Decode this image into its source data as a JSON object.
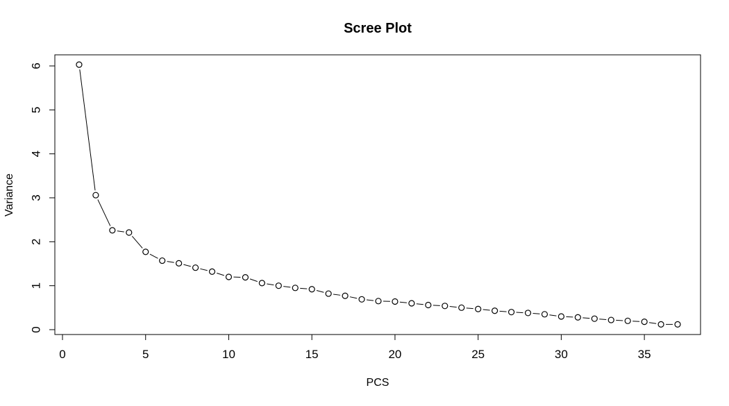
{
  "chart_data": {
    "type": "line",
    "title": "Scree Plot",
    "xlabel": "PCS",
    "ylabel": "Variance",
    "xlim": [
      0,
      37
    ],
    "ylim": [
      0,
      6
    ],
    "xticks": [
      0,
      5,
      10,
      15,
      20,
      25,
      30,
      35
    ],
    "yticks": [
      0,
      1,
      2,
      3,
      4,
      5,
      6
    ],
    "grid": false,
    "marker": "open-circle",
    "line_color": "#000000",
    "x": [
      1,
      2,
      3,
      4,
      5,
      6,
      7,
      8,
      9,
      10,
      11,
      12,
      13,
      14,
      15,
      16,
      17,
      18,
      19,
      20,
      21,
      22,
      23,
      24,
      25,
      26,
      27,
      28,
      29,
      30,
      31,
      32,
      33,
      34,
      35,
      36,
      37
    ],
    "values": [
      6.03,
      3.06,
      2.26,
      2.21,
      1.77,
      1.57,
      1.51,
      1.41,
      1.32,
      1.2,
      1.19,
      1.06,
      1.0,
      0.95,
      0.92,
      0.82,
      0.77,
      0.69,
      0.65,
      0.64,
      0.6,
      0.56,
      0.54,
      0.5,
      0.47,
      0.43,
      0.4,
      0.38,
      0.35,
      0.3,
      0.28,
      0.25,
      0.22,
      0.2,
      0.18,
      0.12,
      0.12
    ]
  }
}
